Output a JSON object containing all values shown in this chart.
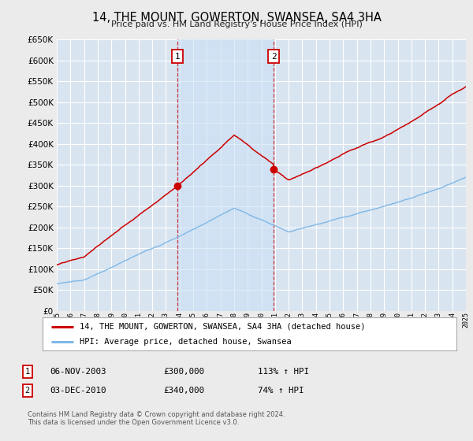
{
  "title": "14, THE MOUNT, GOWERTON, SWANSEA, SA4 3HA",
  "subtitle": "Price paid vs. HM Land Registry's House Price Index (HPI)",
  "legend_label_red": "14, THE MOUNT, GOWERTON, SWANSEA, SA4 3HA (detached house)",
  "legend_label_blue": "HPI: Average price, detached house, Swansea",
  "footnote": "Contains HM Land Registry data © Crown copyright and database right 2024.\nThis data is licensed under the Open Government Licence v3.0.",
  "sale1_date": "06-NOV-2003",
  "sale1_price": "£300,000",
  "sale1_hpi": "113% ↑ HPI",
  "sale2_date": "03-DEC-2010",
  "sale2_price": "£340,000",
  "sale2_hpi": "74% ↑ HPI",
  "sale1_x": 2003.85,
  "sale1_y": 300000,
  "sale2_x": 2010.92,
  "sale2_y": 340000,
  "vline1_x": 2003.85,
  "vline2_x": 2010.92,
  "ylim": [
    0,
    650000
  ],
  "xlim_start": 1995,
  "xlim_end": 2025,
  "fig_bg_color": "#ebebeb",
  "plot_bg_color": "#d8e4f0",
  "grid_color": "#ffffff",
  "red_line_color": "#cc0000",
  "blue_line_color": "#7fb8e8",
  "vline_color": "#cc0000",
  "legend_bg": "#ffffff",
  "legend_border": "#aaaaaa"
}
